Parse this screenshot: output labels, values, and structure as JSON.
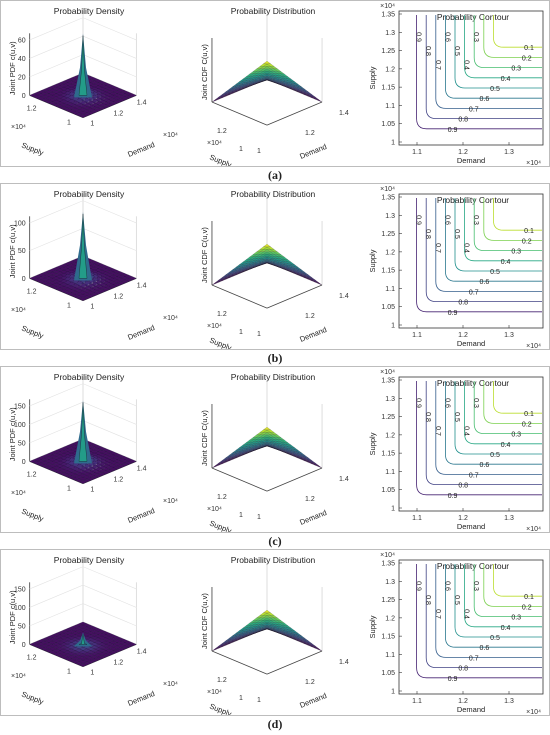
{
  "figure": {
    "panels": [
      {
        "label": "(a)",
        "pdf_ticks": [
          "0",
          "20",
          "40",
          "60"
        ],
        "pdf_max": 60,
        "pdf_peak": 67,
        "spike_secondary": 30,
        "contour_ticks_x": [
          "1.1",
          "1.2",
          "1.3"
        ],
        "contour_labels": [
          "0.9",
          "0.8",
          "0.7",
          "0.6",
          "0.5",
          "0.4",
          "0.3",
          "0.2",
          "0.1"
        ]
      },
      {
        "label": "(b)",
        "pdf_ticks": [
          "0",
          "50",
          "100"
        ],
        "pdf_max": 100,
        "pdf_peak": 120,
        "spike_secondary": 60,
        "contour_ticks_x": [
          "1.1",
          "1.2",
          "1.3"
        ],
        "contour_labels": [
          "0.9",
          "0.8",
          "0.7",
          "0.6",
          "0.5",
          "0.4",
          "0.3",
          "0.2",
          "0.1"
        ]
      },
      {
        "label": "(c)",
        "pdf_ticks": [
          "0",
          "50",
          "100",
          "150"
        ],
        "pdf_max": 150,
        "pdf_peak": 165,
        "spike_secondary": 80,
        "contour_ticks_x": [
          "1.1",
          "1.2",
          "1.3"
        ],
        "contour_labels": [
          "0.9",
          "0.8",
          "0.7",
          "0.6",
          "0.5",
          "0.4",
          "0.3",
          "0.2",
          "0.1"
        ]
      },
      {
        "label": "(d)",
        "pdf_ticks": [
          "0",
          "50",
          "100",
          "150"
        ],
        "pdf_max": 150,
        "pdf_peak": 32,
        "spike_secondary": 10,
        "contour_ticks_x": [
          "1.1",
          "1.2",
          "1.3"
        ],
        "contour_labels": [
          "0.9",
          "0.8",
          "0.7",
          "0.6",
          "0.5",
          "0.4",
          "0.3",
          "0.2",
          "0.1"
        ]
      }
    ],
    "titles": {
      "density": "Probability Density",
      "distribution": "Probability Distribution",
      "contour": "Probability Contour"
    },
    "axis_labels": {
      "pdf_z": "Joint PDF c(u,v)",
      "cdf_z": "Joint CDF C(u,v)",
      "supply": "Supply",
      "demand": "Demand",
      "exponent": "×10⁴"
    },
    "surface_ticks": {
      "supply": [
        "1",
        "1.2"
      ],
      "demand": [
        "1",
        "1.2",
        "1.4"
      ]
    },
    "contour_y_ticks": [
      "1",
      "1.05",
      "1.1",
      "1.15",
      "1.2",
      "1.25",
      "1.3",
      "1.35"
    ]
  },
  "chart_data": [
    {
      "panel": "(a)",
      "type": "figure-grid",
      "charts": [
        {
          "type": "surface",
          "title": "Probability Density",
          "zlabel": "Joint PDF c(u,v)",
          "xlabel": "Demand",
          "ylabel": "Supply",
          "zlim": [
            0,
            67
          ],
          "zticks": [
            0,
            20,
            40,
            60
          ],
          "peak": 67
        },
        {
          "type": "surface",
          "title": "Probability Distribution",
          "zlabel": "Joint CDF C(u,v)",
          "xlabel": "Demand",
          "ylabel": "Supply",
          "zlim": [
            0,
            1
          ]
        },
        {
          "type": "contour",
          "title": "Probability Contour",
          "xlabel": "Demand",
          "ylabel": "Supply",
          "levels": [
            0.1,
            0.2,
            0.3,
            0.4,
            0.5,
            0.6,
            0.7,
            0.8,
            0.9
          ],
          "xlim": [
            1.05,
            1.38
          ],
          "ylim": [
            1,
            1.37
          ]
        }
      ]
    },
    {
      "panel": "(b)",
      "type": "figure-grid",
      "charts": [
        {
          "type": "surface",
          "title": "Probability Density",
          "zlabel": "Joint PDF c(u,v)",
          "zticks": [
            0,
            50,
            100
          ],
          "peak": 120
        },
        {
          "type": "surface",
          "title": "Probability Distribution",
          "zlabel": "Joint CDF C(u,v)",
          "zlim": [
            0,
            1
          ]
        },
        {
          "type": "contour",
          "title": "Probability Contour",
          "levels": [
            0.1,
            0.2,
            0.3,
            0.4,
            0.5,
            0.6,
            0.7,
            0.8,
            0.9
          ]
        }
      ]
    },
    {
      "panel": "(c)",
      "type": "figure-grid",
      "charts": [
        {
          "type": "surface",
          "title": "Probability Density",
          "zlabel": "Joint PDF c(u,v)",
          "zticks": [
            0,
            50,
            100,
            150
          ],
          "peak": 165
        },
        {
          "type": "surface",
          "title": "Probability Distribution",
          "zlabel": "Joint CDF C(u,v)",
          "zlim": [
            0,
            1
          ]
        },
        {
          "type": "contour",
          "title": "Probability Contour",
          "levels": [
            0.1,
            0.2,
            0.3,
            0.4,
            0.5,
            0.6,
            0.7,
            0.8,
            0.9
          ]
        }
      ]
    },
    {
      "panel": "(d)",
      "type": "figure-grid",
      "charts": [
        {
          "type": "surface",
          "title": "Probability Density",
          "zlabel": "Joint PDF c(u,v)",
          "zticks": [
            0,
            50,
            100,
            150
          ],
          "peak": 32
        },
        {
          "type": "surface",
          "title": "Probability Distribution",
          "zlabel": "Joint CDF C(u,v)",
          "zlim": [
            0,
            1
          ]
        },
        {
          "type": "contour",
          "title": "Probability Contour",
          "levels": [
            0.1,
            0.2,
            0.3,
            0.4,
            0.5,
            0.6,
            0.7,
            0.8,
            0.9
          ]
        }
      ]
    }
  ]
}
